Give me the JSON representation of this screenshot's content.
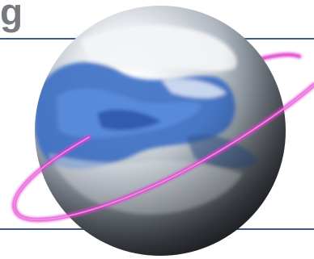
{
  "logo": {
    "text_fragment": "g",
    "text_color": "#777b80"
  },
  "graphic": {
    "globe_icon": "globe-icon",
    "orbit_icon": "orbit-ring-icon",
    "colors": {
      "rule_line": "#3a5a8c",
      "orbit": "#e040d0",
      "ocean": "#3a6fc4",
      "cloud": "#f2f4f6",
      "shadow": "#1c1e22"
    }
  }
}
